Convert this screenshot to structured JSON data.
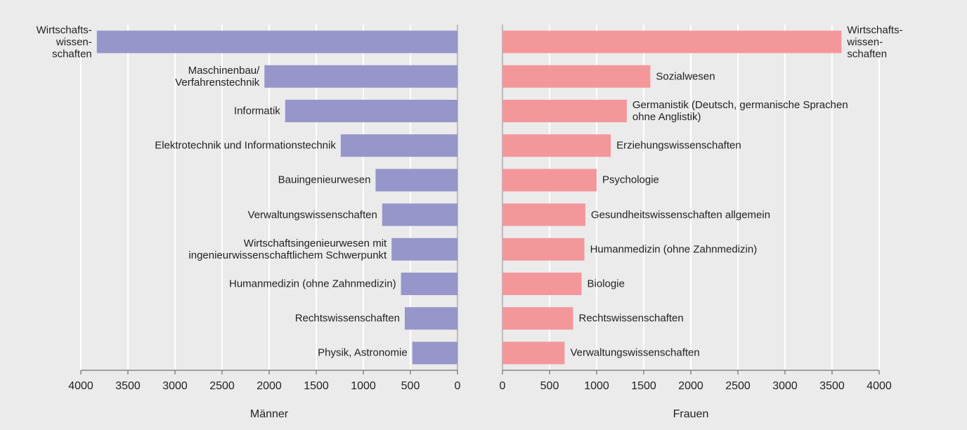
{
  "chart_data": [
    {
      "type": "bar",
      "orientation": "horizontal",
      "x_reversed": true,
      "xlabel": "Männer",
      "color": "#9696ca",
      "categories": [
        "Wirtschafts-\nwissen-\nschaften",
        "Maschinenbau/\nVerfahrenstechnik",
        "Informatik",
        "Elektrotechnik und Informationstechnik",
        "Bauingenieurwesen",
        "Verwaltungswissenschaften",
        "Wirtschaftsingenieurwesen mit\ningenieurwissenschaftlichem Schwerpunkt",
        "Humanmedizin (ohne Zahnmedizin)",
        "Rechtswissenschaften",
        "Physik, Astronomie"
      ],
      "values": [
        3830,
        2050,
        1830,
        1240,
        870,
        800,
        700,
        600,
        560,
        480
      ],
      "xlim": [
        0,
        4000
      ],
      "xticks": [
        0,
        500,
        1000,
        1500,
        2000,
        2500,
        3000,
        3500,
        4000
      ],
      "grid": true
    },
    {
      "type": "bar",
      "orientation": "horizontal",
      "x_reversed": false,
      "xlabel": "Frauen",
      "color": "#f4979b",
      "categories": [
        "Wirtschafts-\nwissen-\nschaften",
        "Sozialwesen",
        "Germanistik (Deutsch, germanische Sprachen\nohne Anglistik)",
        "Erziehungswissenschaften",
        "Psychologie",
        "Gesundheitswissenschaften allgemein",
        "Humanmedizin (ohne Zahnmedizin)",
        "Biologie",
        "Rechtswissenschaften",
        "Verwaltungswissenschaften"
      ],
      "values": [
        3600,
        1570,
        1320,
        1150,
        1000,
        880,
        870,
        840,
        750,
        660
      ],
      "xlim": [
        0,
        4000
      ],
      "xticks": [
        0,
        500,
        1000,
        1500,
        2000,
        2500,
        3000,
        3500,
        4000
      ],
      "grid": true
    }
  ]
}
